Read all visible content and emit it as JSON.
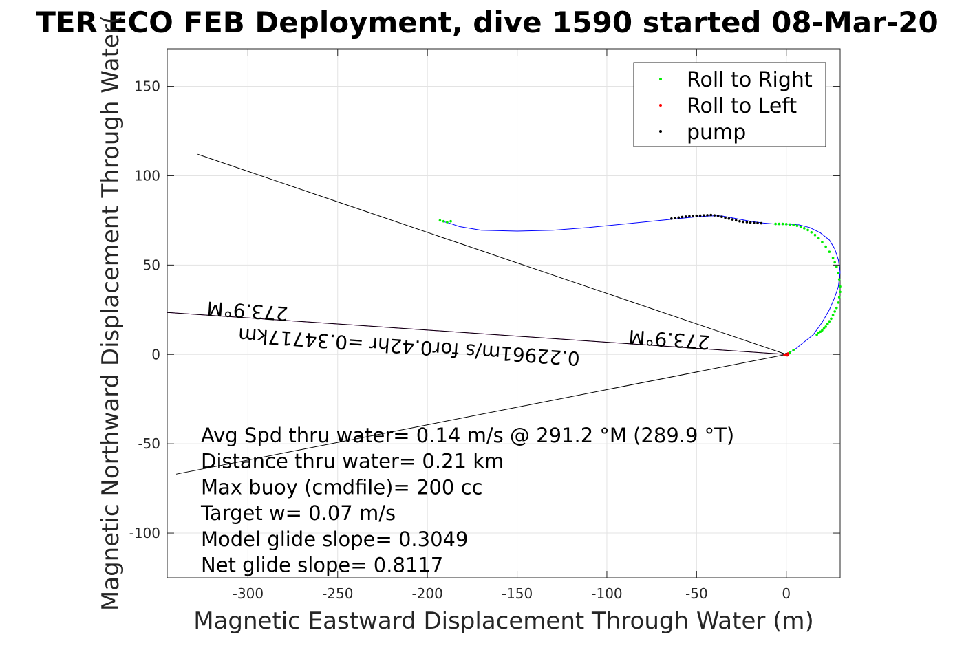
{
  "chart_data": {
    "type": "scatter",
    "title": "TER ECO FEB Deployment, dive 1590 started 08-Mar-20",
    "xlabel": "Magnetic Eastward Displacement Through Water (m)",
    "ylabel": "Magnetic Northward Displacement Through Water(",
    "xlim": [
      -345,
      30
    ],
    "ylim": [
      -125,
      171
    ],
    "xticks": [
      -300,
      -250,
      -200,
      -150,
      -100,
      -50,
      0
    ],
    "yticks": [
      -100,
      -50,
      0,
      50,
      100,
      150
    ],
    "grid": true,
    "legend_position": "top-right",
    "series": [
      {
        "name": "Roll to Right",
        "color": "#00ee00"
      },
      {
        "name": "Roll to Left",
        "color": "#ff0000"
      },
      {
        "name": "pump",
        "color": "#000000"
      }
    ],
    "track": {
      "color": "#0000ff",
      "x": [
        0,
        5,
        10,
        15,
        20,
        24,
        27,
        29,
        30,
        29,
        27,
        24,
        19,
        13,
        7,
        0,
        -7,
        -13,
        -20,
        -28,
        -36,
        -42,
        -50,
        -60,
        -70,
        -90,
        -110,
        -130,
        -150,
        -170,
        -182,
        -188,
        -192
      ],
      "y": [
        0,
        3,
        7,
        11,
        18,
        25,
        32,
        38,
        46,
        53,
        59,
        64,
        68,
        71,
        72.5,
        73,
        73,
        73.5,
        74.5,
        76,
        77.5,
        77.5,
        77,
        76,
        75,
        73,
        71,
        69.5,
        69,
        69.5,
        71.5,
        73.5,
        74.5
      ]
    },
    "roll_right_points": {
      "x": [
        -193,
        -191,
        -189,
        -187,
        -6,
        -4,
        -2,
        0,
        2,
        4,
        6,
        8,
        10,
        12,
        14,
        16,
        18,
        20,
        22,
        24,
        26,
        27,
        28,
        29,
        29.5,
        30,
        30,
        29.5,
        29,
        28,
        27,
        26,
        25,
        24,
        23,
        22,
        21,
        20,
        19,
        18,
        17,
        4,
        2
      ],
      "y": [
        75,
        74.5,
        74,
        74.5,
        73,
        73,
        73,
        72.9,
        72.7,
        72.4,
        72,
        71.4,
        70.6,
        69.6,
        68.3,
        66.8,
        65,
        62.8,
        60.3,
        57.4,
        54,
        51.5,
        49,
        45.5,
        42,
        38,
        35,
        32,
        29,
        26,
        24,
        22,
        20,
        18.5,
        17,
        15.5,
        14.5,
        13.5,
        12.7,
        12,
        11,
        2.5,
        1
      ]
    },
    "roll_left_points": {
      "x": [
        0,
        1,
        -1,
        0.5
      ],
      "y": [
        0,
        0.5,
        -0.2,
        -0.5
      ]
    },
    "pump_points": {
      "x": [
        -64,
        -62,
        -60,
        -58,
        -56,
        -54,
        -52,
        -50,
        -48,
        -46,
        -44,
        -42,
        -40,
        -38,
        -36,
        -34,
        -32,
        -30,
        -28,
        -26,
        -24,
        -22,
        -20,
        -18,
        -16,
        -14,
        0,
        1,
        -1
      ],
      "y": [
        76,
        76.3,
        76.6,
        76.9,
        77.1,
        77.3,
        77.5,
        77.6,
        77.7,
        77.8,
        77.9,
        78,
        77.8,
        77.5,
        77,
        76.5,
        76,
        75.5,
        75,
        74.5,
        74.2,
        74,
        73.8,
        73.6,
        73.5,
        73.4,
        0.2,
        0,
        -0.3
      ]
    },
    "lines": [
      {
        "color": "#000000",
        "x": [
          0,
          -328
        ],
        "y": [
          0,
          112
        ]
      },
      {
        "color": "#000000",
        "x": [
          0,
          -340
        ],
        "y": [
          0,
          -67
        ]
      },
      {
        "color": "#cc00cc",
        "x": [
          0,
          -345
        ],
        "y": [
          0,
          23.5
        ]
      },
      {
        "color": "#000000",
        "x": [
          0,
          -345
        ],
        "y": [
          0,
          23.5
        ]
      }
    ],
    "plot_labels": [
      {
        "text": "273.9°M",
        "x": -300,
        "y": 28,
        "rotate": 184
      },
      {
        "text": "273.9°M",
        "x": -65,
        "y": 12,
        "rotate": 184
      },
      {
        "text": "0.22961m/s for0.42hr =0.34717km",
        "x": -210,
        "y": 8,
        "rotate": 184
      }
    ],
    "annotations": [
      "Avg Spd thru water=  0.14 m/s @ 291.2 °M (289.9 °T)",
      "Distance thru water=  0.21 km",
      "Max buoy (cmdfile)= 200 cc",
      "Target w= 0.07 m/s",
      "Model glide slope= 0.3049",
      "Net glide slope= 0.8117"
    ]
  }
}
